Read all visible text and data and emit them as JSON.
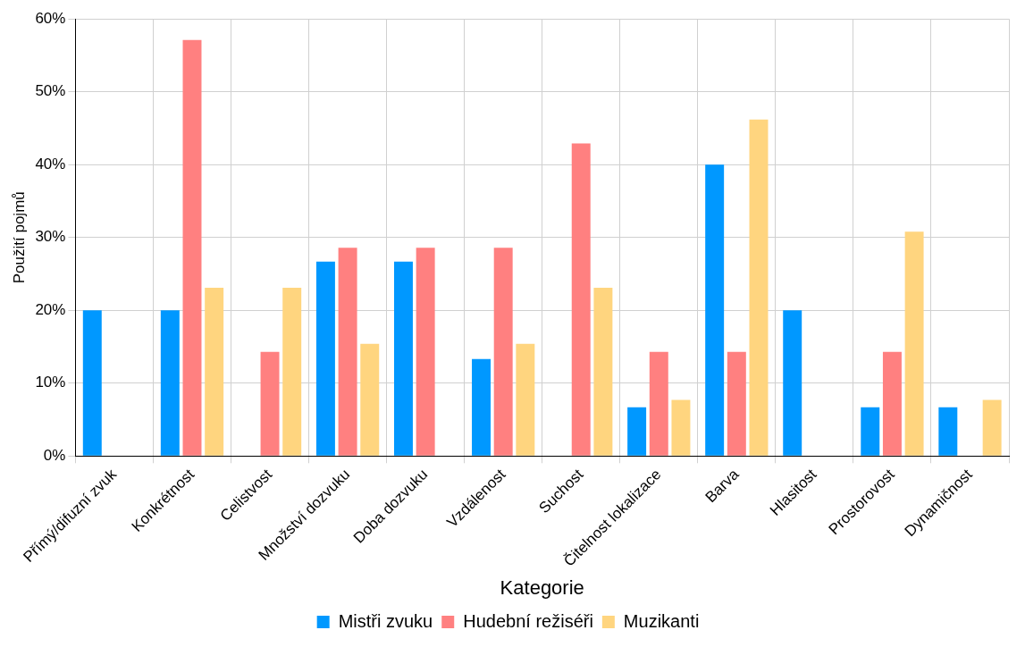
{
  "chart_data": {
    "type": "bar",
    "xlabel": "Kategorie",
    "ylabel": "Použití pojmů",
    "categories": [
      "Přímý/difuzní zvuk",
      "Konkrétnost",
      "Celistvost",
      "Množství dozvuku",
      "Doba dozvuku",
      "Vzdálenost",
      "Suchost",
      "Čitelnost lokalizace",
      "Barva",
      "Hlasitost",
      "Prostorovost",
      "Dynamičnost"
    ],
    "series": [
      {
        "name": "Mistři zvuku",
        "color": "#0098ff",
        "values": [
          20,
          20,
          0,
          26.7,
          26.7,
          13.3,
          0,
          6.7,
          40,
          20,
          6.7,
          6.7
        ]
      },
      {
        "name": "Hudební režiséři",
        "color": "#ff8080",
        "values": [
          0,
          57.1,
          14.3,
          28.6,
          28.6,
          28.6,
          42.9,
          14.3,
          14.3,
          0,
          14.3,
          0
        ]
      },
      {
        "name": "Muzikanti",
        "color": "#ffd57f",
        "values": [
          0,
          23.1,
          23.1,
          15.4,
          0,
          15.4,
          23.1,
          7.7,
          46.2,
          0,
          30.8,
          7.7
        ]
      }
    ],
    "ylim": [
      0,
      60
    ],
    "yticks": [
      {
        "value": 0,
        "label": "0%"
      },
      {
        "value": 10,
        "label": "10%"
      },
      {
        "value": 20,
        "label": "20%"
      },
      {
        "value": 30,
        "label": "30%"
      },
      {
        "value": 40,
        "label": "40%"
      },
      {
        "value": 50,
        "label": "50%"
      },
      {
        "value": 60,
        "label": "60%"
      }
    ],
    "grid": true,
    "legend": "bottom"
  }
}
